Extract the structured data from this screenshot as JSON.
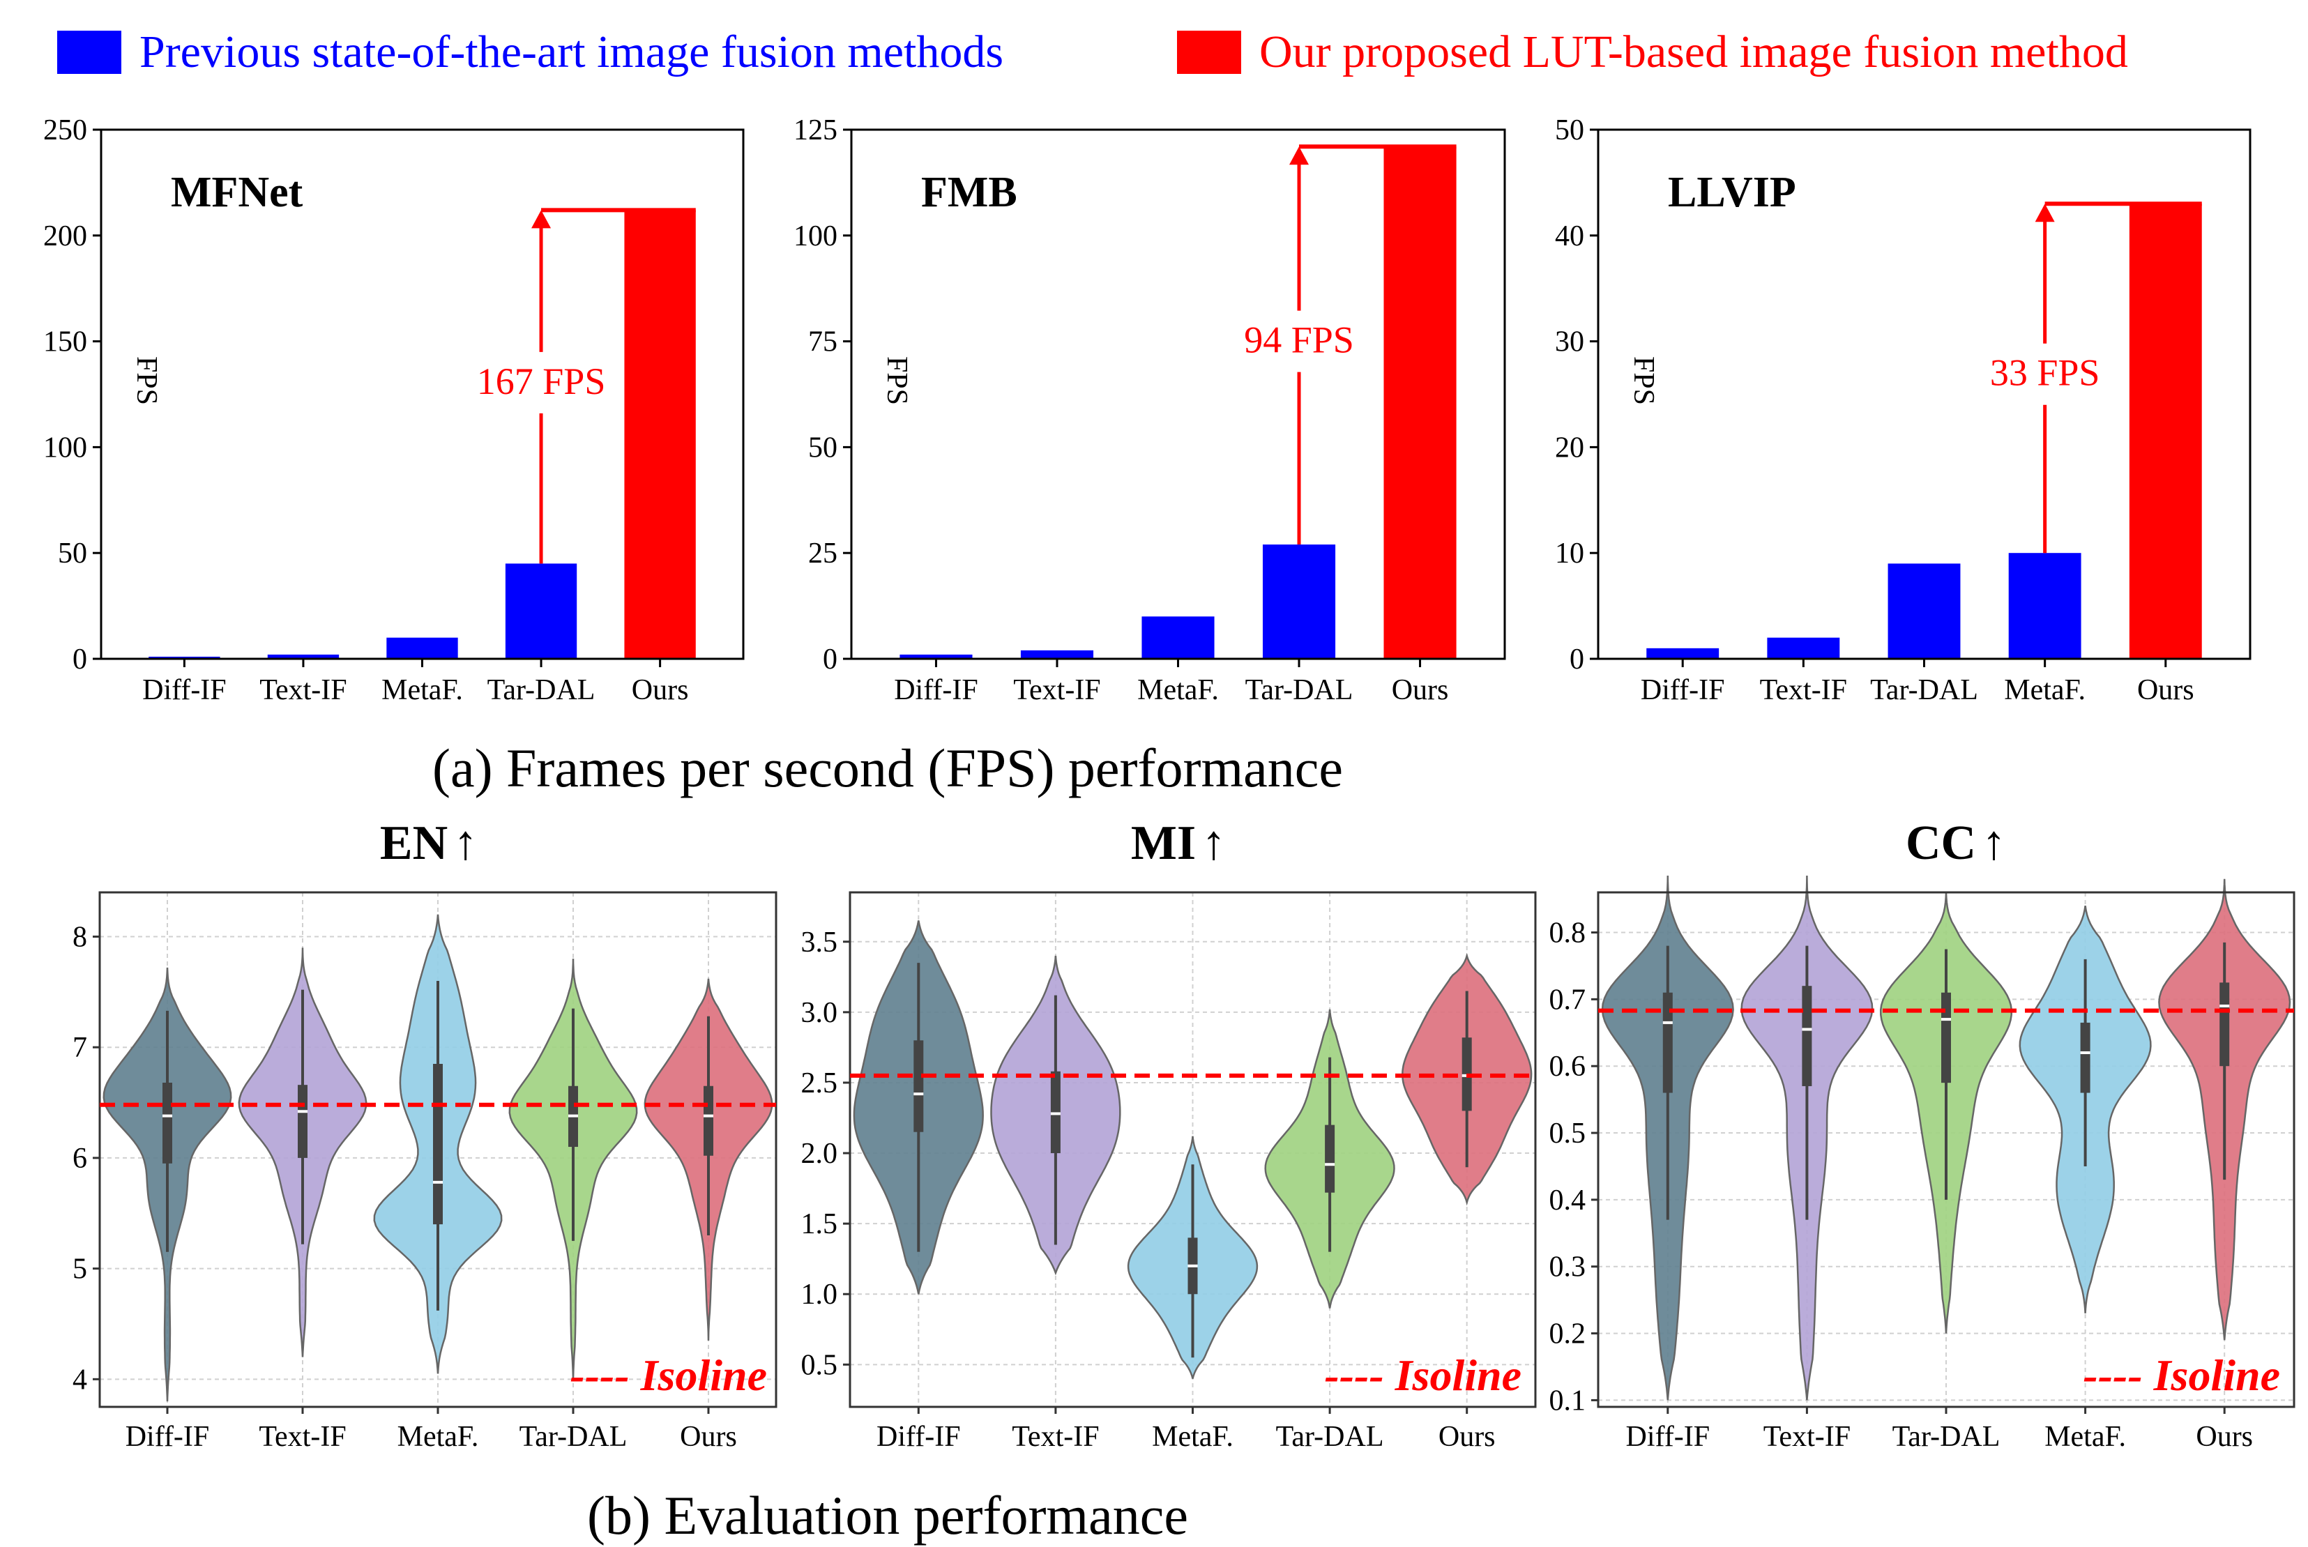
{
  "legend": {
    "previous": {
      "label": "Previous state-of-the-art image fusion methods",
      "color": "#0000ff"
    },
    "ours": {
      "label": "Our proposed LUT-based image fusion method",
      "color": "#ff0000"
    }
  },
  "captions": {
    "a": "(a) Frames per second (FPS) performance",
    "b": "(b) Evaluation performance"
  },
  "chart_data": [
    {
      "type": "bar",
      "title": "MFNet",
      "ylabel": "FPS",
      "categories": [
        "Diff-IF",
        "Text-IF",
        "MetaF.",
        "Tar-DAL",
        "Ours"
      ],
      "values": [
        1,
        2,
        10,
        45,
        212
      ],
      "colors": [
        "#0000ff",
        "#0000ff",
        "#0000ff",
        "#0000ff",
        "#ff0000"
      ],
      "ylim": [
        0,
        250
      ],
      "yticks": [
        0,
        50,
        100,
        150,
        200,
        250
      ],
      "ytick_labels": [
        "0",
        "50",
        "100",
        "150",
        "200",
        "250"
      ],
      "annotation": {
        "text": "167 FPS",
        "from": 45,
        "to": 212
      }
    },
    {
      "type": "bar",
      "title": "FMB",
      "ylabel": "FPS",
      "categories": [
        "Diff-IF",
        "Text-IF",
        "MetaF.",
        "Tar-DAL",
        "Ours"
      ],
      "values": [
        1,
        2,
        10,
        27,
        121
      ],
      "colors": [
        "#0000ff",
        "#0000ff",
        "#0000ff",
        "#0000ff",
        "#ff0000"
      ],
      "ylim": [
        0,
        125
      ],
      "yticks": [
        0,
        25,
        50,
        75,
        100,
        125
      ],
      "ytick_labels": [
        "0",
        "25",
        "50",
        "75",
        "100",
        "125"
      ],
      "annotation": {
        "text": "94 FPS",
        "from": 27,
        "to": 121
      }
    },
    {
      "type": "bar",
      "title": "LLVIP",
      "ylabel": "FPS",
      "categories": [
        "Diff-IF",
        "Text-IF",
        "Tar-DAL",
        "MetaF.",
        "Ours"
      ],
      "values": [
        1,
        2,
        9,
        10,
        43
      ],
      "colors": [
        "#0000ff",
        "#0000ff",
        "#0000ff",
        "#0000ff",
        "#ff0000"
      ],
      "ylim": [
        0,
        50
      ],
      "yticks": [
        0,
        10,
        20,
        30,
        40,
        50
      ],
      "ytick_labels": [
        "0",
        "10",
        "20",
        "30",
        "40",
        "50"
      ],
      "annotation": {
        "text": "33 FPS",
        "from": 10,
        "to": 43
      }
    },
    {
      "type": "violin",
      "title": "EN",
      "arrow": "↑",
      "isoline_label": "---- Isoline",
      "isoline": 6.48,
      "categories": [
        "Diff-IF",
        "Text-IF",
        "MetaF.",
        "Tar-DAL",
        "Ours"
      ],
      "colors": [
        "#5f7f8f",
        "#b3a3d6",
        "#91cde6",
        "#9fd17f",
        "#dd6f7c"
      ],
      "ylim": [
        3.75,
        8.4
      ],
      "yticks": [
        4,
        5,
        6,
        7,
        8
      ],
      "ytick_labels": [
        "4",
        "5",
        "6",
        "7",
        "8"
      ],
      "distributions": [
        {
          "min": 3.8,
          "max": 7.72,
          "q1": 5.95,
          "median": 6.38,
          "q3": 6.68,
          "wlo": 5.15,
          "whi": 7.33,
          "modes": [
            [
              6.5,
              1.0,
              0.28
            ],
            [
              6.95,
              0.45,
              0.3
            ],
            [
              5.7,
              0.35,
              0.35
            ],
            [
              4.4,
              0.05,
              0.4
            ]
          ]
        },
        {
          "min": 4.2,
          "max": 7.9,
          "q1": 6.0,
          "median": 6.42,
          "q3": 6.66,
          "wlo": 5.22,
          "whi": 7.52,
          "modes": [
            [
              6.48,
              1.0,
              0.28
            ],
            [
              7.05,
              0.4,
              0.3
            ],
            [
              5.8,
              0.35,
              0.35
            ],
            [
              4.7,
              0.05,
              0.4
            ]
          ]
        },
        {
          "min": 4.05,
          "max": 8.2,
          "q1": 5.4,
          "median": 5.78,
          "q3": 6.85,
          "wlo": 4.62,
          "whi": 7.6,
          "modes": [
            [
              5.45,
              1.0,
              0.28
            ],
            [
              6.6,
              0.55,
              0.4
            ],
            [
              7.4,
              0.3,
              0.4
            ],
            [
              4.6,
              0.15,
              0.3
            ]
          ]
        },
        {
          "min": 4.0,
          "max": 7.8,
          "q1": 6.1,
          "median": 6.38,
          "q3": 6.65,
          "wlo": 5.25,
          "whi": 7.35,
          "modes": [
            [
              6.4,
              1.0,
              0.28
            ],
            [
              6.95,
              0.4,
              0.3
            ],
            [
              5.7,
              0.3,
              0.35
            ],
            [
              4.6,
              0.04,
              0.4
            ]
          ]
        },
        {
          "min": 4.35,
          "max": 7.62,
          "q1": 6.02,
          "median": 6.38,
          "q3": 6.65,
          "wlo": 5.3,
          "whi": 7.28,
          "modes": [
            [
              6.45,
              1.0,
              0.28
            ],
            [
              6.95,
              0.45,
              0.3
            ],
            [
              5.8,
              0.3,
              0.35
            ],
            [
              4.9,
              0.04,
              0.3
            ]
          ]
        }
      ]
    },
    {
      "type": "violin",
      "title": "MI",
      "arrow": "↑",
      "isoline_label": "---- Isoline",
      "isoline": 2.55,
      "categories": [
        "Diff-IF",
        "Text-IF",
        "MetaF.",
        "Tar-DAL",
        "Ours"
      ],
      "colors": [
        "#5f7f8f",
        "#b3a3d6",
        "#91cde6",
        "#9fd17f",
        "#dd6f7c"
      ],
      "ylim": [
        0.2,
        3.85
      ],
      "yticks": [
        0.5,
        1.0,
        1.5,
        2.0,
        2.5,
        3.0,
        3.5
      ],
      "ytick_labels": [
        "0.5",
        "1.0",
        "1.5",
        "2.0",
        "2.5",
        "3.0",
        "3.5"
      ],
      "distributions": [
        {
          "min": 1.0,
          "max": 3.65,
          "q1": 2.15,
          "median": 2.42,
          "q3": 2.8,
          "wlo": 1.3,
          "whi": 3.35,
          "modes": [
            [
              2.2,
              1.0,
              0.38
            ],
            [
              2.95,
              0.6,
              0.35
            ],
            [
              1.4,
              0.2,
              0.3
            ]
          ]
        },
        {
          "min": 1.15,
          "max": 3.4,
          "q1": 2.0,
          "median": 2.28,
          "q3": 2.58,
          "wlo": 1.35,
          "whi": 3.12,
          "modes": [
            [
              2.1,
              1.0,
              0.35
            ],
            [
              2.65,
              0.7,
              0.3
            ],
            [
              1.4,
              0.2,
              0.3
            ]
          ]
        },
        {
          "min": 0.4,
          "max": 2.12,
          "q1": 1.0,
          "median": 1.2,
          "q3": 1.4,
          "wlo": 0.55,
          "whi": 1.92,
          "modes": [
            [
              1.2,
              1.0,
              0.25
            ],
            [
              0.7,
              0.2,
              0.2
            ],
            [
              1.75,
              0.15,
              0.2
            ]
          ]
        },
        {
          "min": 0.9,
          "max": 3.02,
          "q1": 1.72,
          "median": 1.92,
          "q3": 2.2,
          "wlo": 1.3,
          "whi": 2.68,
          "modes": [
            [
              1.9,
              1.0,
              0.25
            ],
            [
              1.35,
              0.3,
              0.25
            ],
            [
              2.5,
              0.25,
              0.25
            ]
          ]
        },
        {
          "min": 1.65,
          "max": 3.4,
          "q1": 2.3,
          "median": 2.55,
          "q3": 2.82,
          "wlo": 1.9,
          "whi": 3.15,
          "modes": [
            [
              2.55,
              1.0,
              0.3
            ],
            [
              2.0,
              0.3,
              0.2
            ],
            [
              3.05,
              0.3,
              0.2
            ]
          ]
        }
      ]
    },
    {
      "type": "violin",
      "title": "CC",
      "arrow": "↑",
      "isoline_label": "---- Isoline",
      "isoline": 0.683,
      "categories": [
        "Diff-IF",
        "Text-IF",
        "Tar-DAL",
        "MetaF.",
        "Ours"
      ],
      "colors": [
        "#5f7f8f",
        "#b3a3d6",
        "#9fd17f",
        "#91cde6",
        "#dd6f7c"
      ],
      "ylim": [
        0.09,
        0.86
      ],
      "yticks": [
        0.1,
        0.2,
        0.3,
        0.4,
        0.5,
        0.6,
        0.7,
        0.8
      ],
      "ytick_labels": [
        "0.1",
        "0.2",
        "0.3",
        "0.4",
        "0.5",
        "0.6",
        "0.7",
        "0.8"
      ],
      "distributions": [
        {
          "min": 0.1,
          "max": 0.885,
          "q1": 0.56,
          "median": 0.665,
          "q3": 0.71,
          "wlo": 0.37,
          "whi": 0.78,
          "modes": [
            [
              0.69,
              1.0,
              0.06
            ],
            [
              0.5,
              0.35,
              0.12
            ],
            [
              0.25,
              0.15,
              0.1
            ]
          ]
        },
        {
          "min": 0.1,
          "max": 0.885,
          "q1": 0.57,
          "median": 0.655,
          "q3": 0.72,
          "wlo": 0.37,
          "whi": 0.78,
          "modes": [
            [
              0.69,
              1.0,
              0.06
            ],
            [
              0.5,
              0.3,
              0.1
            ],
            [
              0.25,
              0.12,
              0.12
            ]
          ]
        },
        {
          "min": 0.2,
          "max": 0.86,
          "q1": 0.575,
          "median": 0.67,
          "q3": 0.71,
          "wlo": 0.4,
          "whi": 0.775,
          "modes": [
            [
              0.69,
              1.0,
              0.06
            ],
            [
              0.55,
              0.45,
              0.1
            ],
            [
              0.35,
              0.1,
              0.1
            ]
          ]
        },
        {
          "min": 0.23,
          "max": 0.84,
          "q1": 0.56,
          "median": 0.62,
          "q3": 0.665,
          "wlo": 0.45,
          "whi": 0.76,
          "modes": [
            [
              0.63,
              1.0,
              0.06
            ],
            [
              0.42,
              0.45,
              0.08
            ],
            [
              0.75,
              0.3,
              0.05
            ]
          ]
        },
        {
          "min": 0.19,
          "max": 0.88,
          "q1": 0.6,
          "median": 0.69,
          "q3": 0.725,
          "wlo": 0.43,
          "whi": 0.785,
          "modes": [
            [
              0.7,
              1.0,
              0.06
            ],
            [
              0.55,
              0.3,
              0.08
            ],
            [
              0.35,
              0.15,
              0.1
            ]
          ]
        }
      ]
    }
  ]
}
